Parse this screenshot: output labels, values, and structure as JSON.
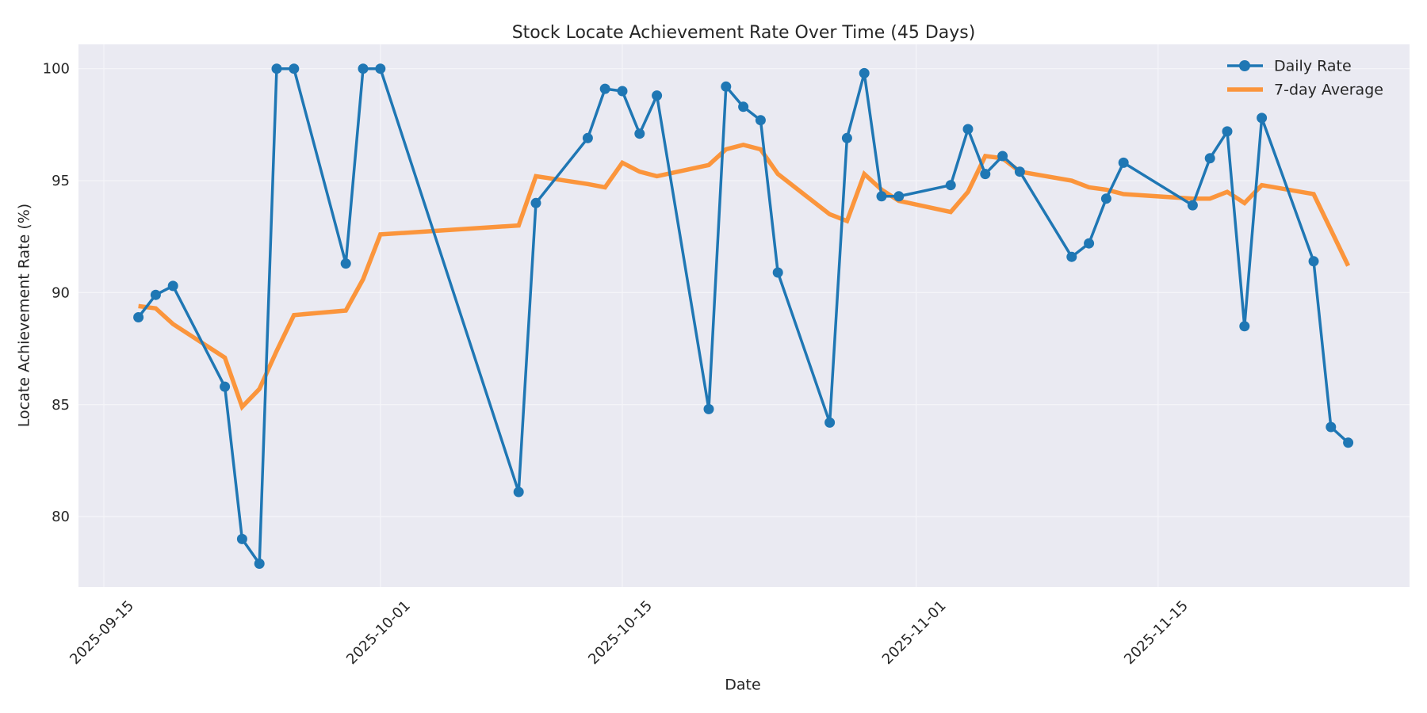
{
  "chart_data": {
    "type": "line",
    "title": "Stock Locate Achievement Rate Over Time (45 Days)",
    "xlabel": "Date",
    "ylabel": "Locate Achievement Rate (%)",
    "ylim": [
      76.7,
      101.1
    ],
    "yticks": [
      80,
      85,
      90,
      95,
      100
    ],
    "xlim": [
      "2025-09-13.5",
      "2025-11-29"
    ],
    "xticks": [
      "2025-09-15",
      "2025-10-01",
      "2025-10-15",
      "2025-11-01",
      "2025-11-15"
    ],
    "x_tick_rotation": 45,
    "grid": true,
    "legend_position": "upper right",
    "colors": {
      "plot_background": "#EAEAF2",
      "grid": "#F5F5F9",
      "daily_rate": "#1F77B4",
      "seven_day_average": "#FF7F0E"
    },
    "x": [
      "2025-09-17",
      "2025-09-18",
      "2025-09-19",
      "2025-09-22",
      "2025-09-23",
      "2025-09-24",
      "2025-09-25",
      "2025-09-26",
      "2025-09-29",
      "2025-09-30",
      "2025-10-01",
      "2025-10-09",
      "2025-10-10",
      "2025-10-13",
      "2025-10-14",
      "2025-10-15",
      "2025-10-16",
      "2025-10-17",
      "2025-10-20",
      "2025-10-21",
      "2025-10-22",
      "2025-10-23",
      "2025-10-24",
      "2025-10-27",
      "2025-10-28",
      "2025-10-29",
      "2025-10-30",
      "2025-10-31",
      "2025-11-03",
      "2025-11-04",
      "2025-11-05",
      "2025-11-06",
      "2025-11-07",
      "2025-11-10",
      "2025-11-11",
      "2025-11-12",
      "2025-11-13",
      "2025-11-17",
      "2025-11-18",
      "2025-11-19",
      "2025-11-20",
      "2025-11-21",
      "2025-11-24",
      "2025-11-25",
      "2025-11-26"
    ],
    "series": [
      {
        "name": "Daily Rate",
        "style": "line-with-markers",
        "values": [
          88.9,
          89.9,
          90.3,
          85.8,
          79.0,
          77.9,
          100.0,
          100.0,
          91.3,
          100.0,
          100.0,
          81.1,
          94.0,
          96.9,
          99.1,
          99.0,
          97.1,
          98.8,
          84.8,
          99.2,
          98.3,
          97.7,
          90.9,
          84.2,
          96.9,
          99.8,
          94.3,
          94.3,
          94.8,
          97.3,
          95.3,
          96.1,
          95.4,
          91.6,
          92.2,
          94.2,
          95.8,
          93.9,
          96.0,
          97.2,
          88.5,
          97.8,
          91.4,
          84.0,
          83.3
        ]
      },
      {
        "name": "7-day Average",
        "style": "line",
        "values": [
          89.4,
          89.3,
          88.6,
          87.1,
          84.9,
          85.7,
          87.4,
          89.0,
          89.2,
          90.6,
          92.6,
          93.0,
          95.2,
          94.85,
          94.7,
          95.8,
          95.4,
          95.2,
          95.7,
          96.4,
          96.6,
          96.4,
          95.3,
          93.5,
          93.2,
          95.3,
          94.6,
          94.1,
          93.6,
          94.5,
          96.1,
          96.0,
          95.4,
          95.0,
          94.7,
          94.6,
          94.4,
          94.2,
          94.2,
          94.5,
          94.0,
          94.8,
          94.4,
          92.8,
          91.2
        ]
      }
    ]
  }
}
